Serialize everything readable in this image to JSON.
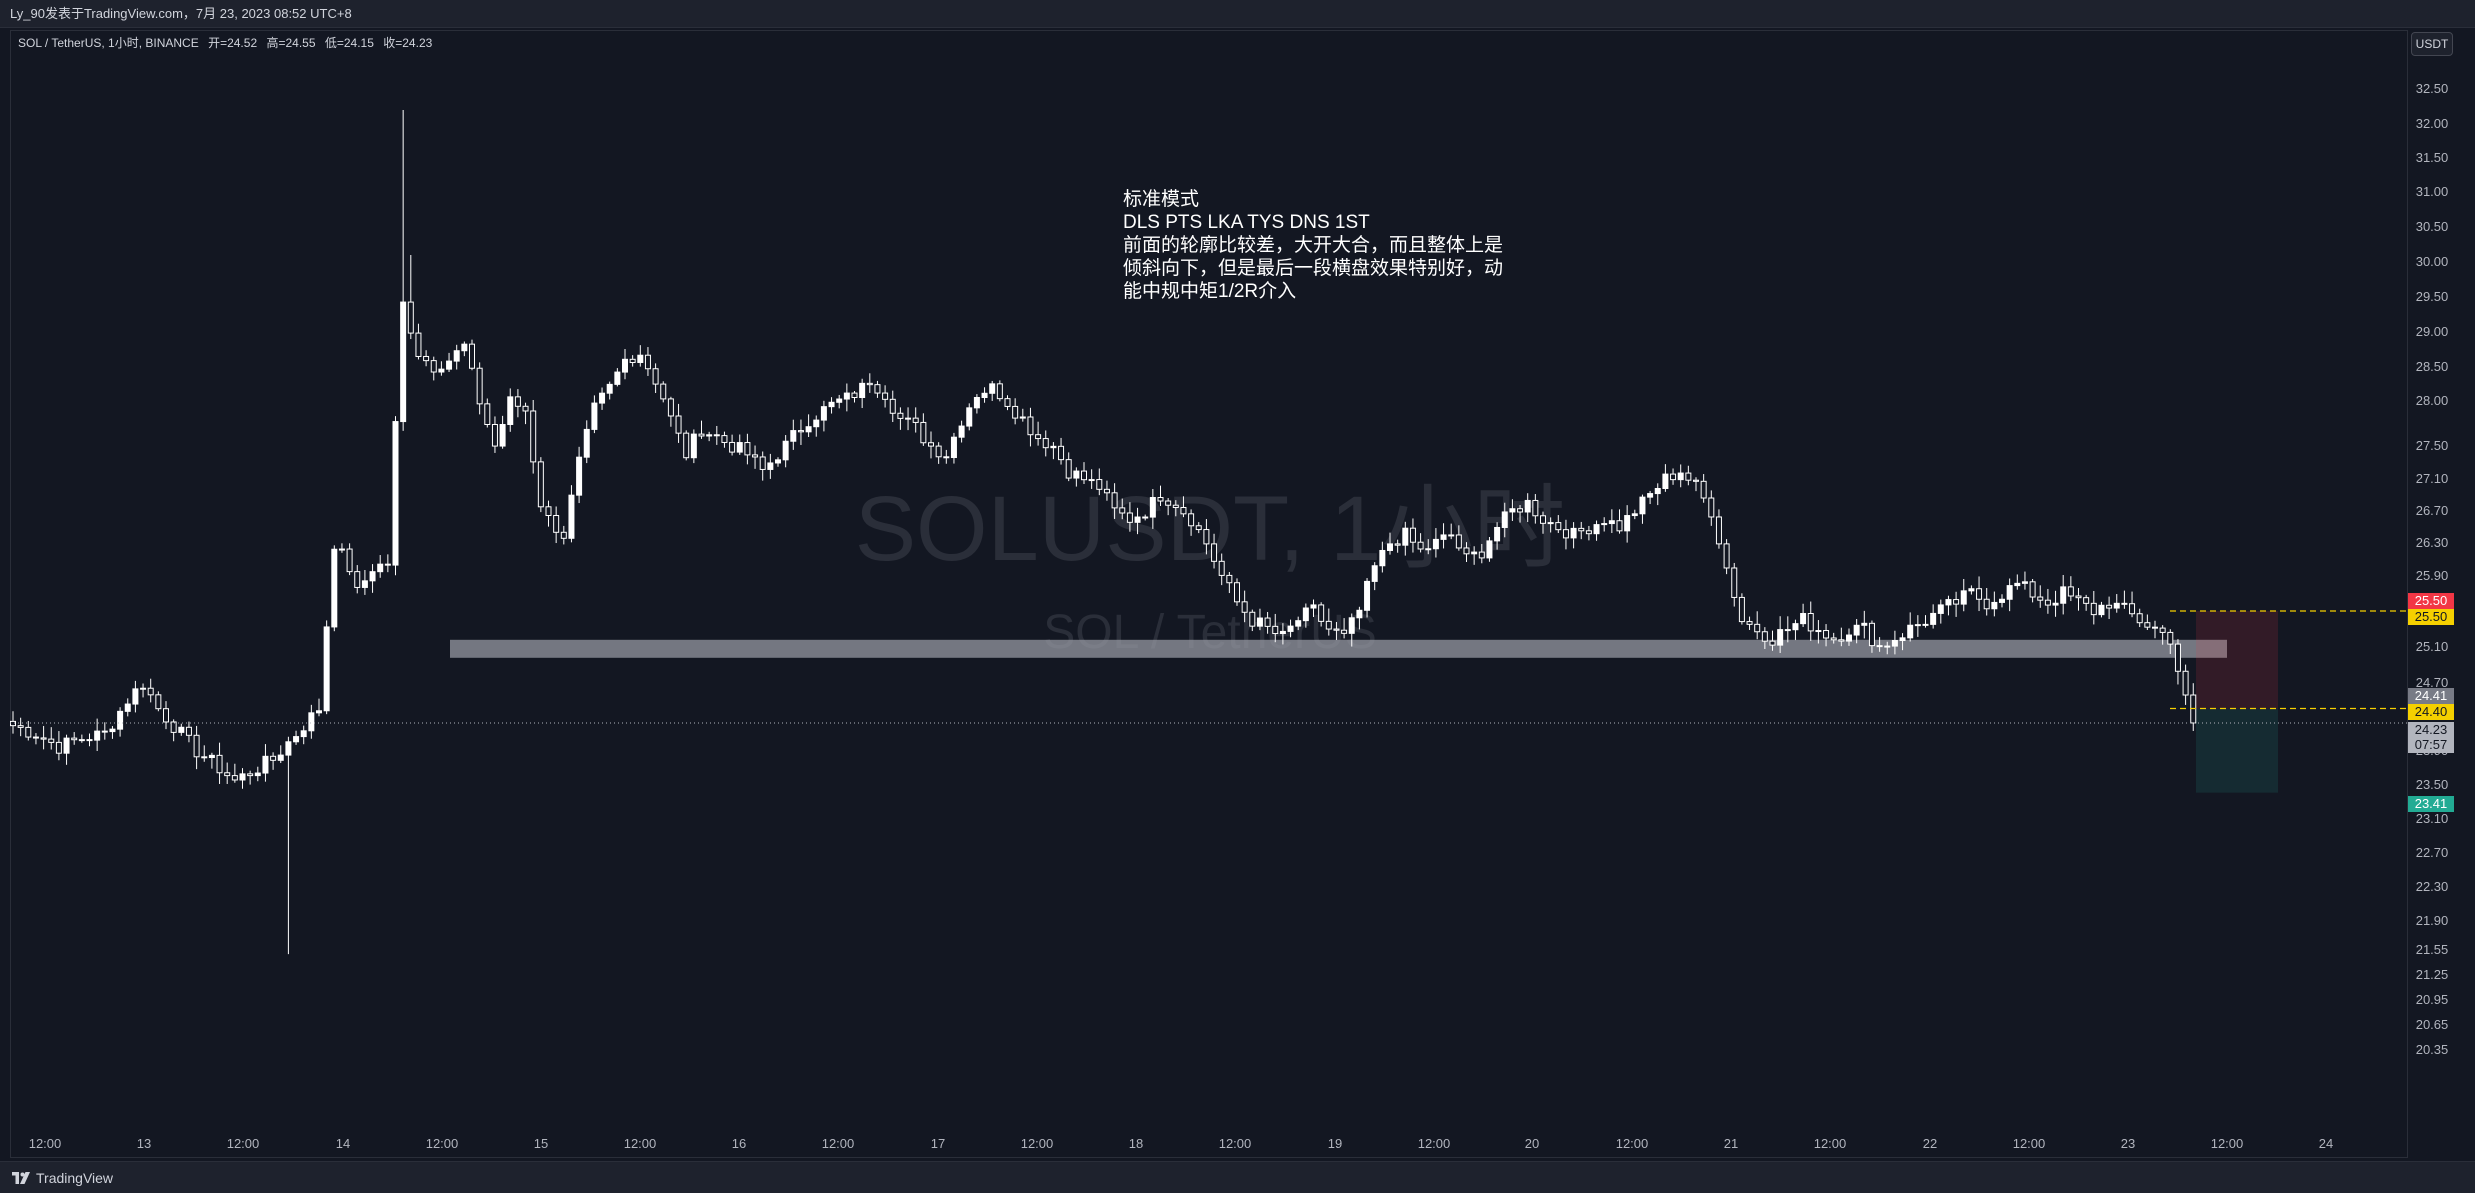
{
  "header": {
    "publish_text": "Ly_90发表于TradingView.com，7月 23, 2023 08:52 UTC+8"
  },
  "legend": {
    "symbol": "SOL / TetherUS, 1小时, BINANCE",
    "open": "开=24.52",
    "high": "高=24.55",
    "low": "低=24.15",
    "close": "收=24.23"
  },
  "currency_button": "USDT",
  "watermark": {
    "main": "SOLUSDT, 1小时",
    "sub": "SOL / TetherUS"
  },
  "annotation": {
    "lines": [
      "标准模式",
      "DLS PTS LKA TYS DNS 1ST",
      "前面的轮廓比较差，大开大合，而且整体上是",
      "倾斜向下，但是最后一段横盘效果特别好，动",
      "能中规中矩1/2R介入"
    ]
  },
  "footer": {
    "brand": "TradingView"
  },
  "colors": {
    "background": "#131722",
    "candle": "#ffffff",
    "stop_zone": "#f23645",
    "target_zone": "#22ab94",
    "entry_line": "#f5d000",
    "support_zone": "#9598a1"
  },
  "chart_data": {
    "type": "candlestick",
    "symbol": "SOLUSDT",
    "interval": "1小时",
    "exchange": "BINANCE",
    "y_axis": {
      "position": "right",
      "ticks": [
        "32.50",
        "32.00",
        "31.50",
        "31.00",
        "30.50",
        "30.00",
        "29.50",
        "29.00",
        "28.50",
        "28.00",
        "27.50",
        "27.10",
        "26.70",
        "26.30",
        "25.90",
        "25.50",
        "25.10",
        "24.70",
        "23.90",
        "23.50",
        "23.10",
        "22.70",
        "22.30",
        "21.90",
        "21.55",
        "21.25",
        "20.95",
        "20.65",
        "20.35"
      ]
    },
    "x_axis": {
      "ticks": [
        "12:00",
        "13",
        "12:00",
        "14",
        "12:00",
        "15",
        "12:00",
        "16",
        "12:00",
        "17",
        "12:00",
        "18",
        "12:00",
        "19",
        "12:00",
        "20",
        "12:00",
        "21",
        "12:00",
        "22",
        "12:00",
        "23",
        "12:00",
        "24"
      ]
    },
    "price_tags": [
      {
        "label": "25.50",
        "color": "#f23645"
      },
      {
        "label": "25.50",
        "color": "#f5d000"
      },
      {
        "label": "24.41",
        "color": "#787b86"
      },
      {
        "label": "24.40",
        "color": "#f5d000"
      },
      {
        "label": "24.23",
        "color": "#b2b5be"
      },
      {
        "label": "07:57",
        "color": "#b2b5be"
      },
      {
        "label": "23.41",
        "color": "#22ab94"
      }
    ],
    "position": {
      "entry": 24.4,
      "stop": 25.5,
      "target": 23.41,
      "current": 24.23
    },
    "support_zone": {
      "low": 24.98,
      "high": 25.18
    },
    "candles_path": [
      [
        0,
        24.2
      ],
      [
        3,
        24.1
      ],
      [
        6,
        23.95
      ],
      [
        9,
        24.05
      ],
      [
        12,
        24.1
      ],
      [
        15,
        24.5
      ],
      [
        17,
        24.7
      ],
      [
        19,
        24.4
      ],
      [
        22,
        24.1
      ],
      [
        24,
        23.9
      ],
      [
        27,
        23.7
      ],
      [
        29,
        23.55
      ],
      [
        31,
        23.65
      ],
      [
        34,
        23.8
      ],
      [
        37,
        24.1
      ],
      [
        39,
        24.3
      ],
      [
        40,
        24.4
      ],
      [
        42,
        26.3
      ],
      [
        44,
        26.0
      ],
      [
        45,
        25.7
      ],
      [
        47,
        26.0
      ],
      [
        49,
        26.05
      ],
      [
        51,
        29.4
      ],
      [
        53,
        28.7
      ],
      [
        55,
        28.5
      ],
      [
        57,
        28.6
      ],
      [
        59,
        28.8
      ],
      [
        61,
        28.0
      ],
      [
        63,
        27.5
      ],
      [
        65,
        28.0
      ],
      [
        67,
        27.9
      ],
      [
        69,
        26.8
      ],
      [
        70,
        26.6
      ],
      [
        72,
        26.4
      ],
      [
        74,
        27.3
      ],
      [
        76,
        27.9
      ],
      [
        78,
        28.2
      ],
      [
        80,
        28.6
      ],
      [
        82,
        28.7
      ],
      [
        84,
        28.3
      ],
      [
        86,
        27.8
      ],
      [
        88,
        27.4
      ],
      [
        90,
        27.7
      ],
      [
        92,
        27.6
      ],
      [
        94,
        27.5
      ],
      [
        96,
        27.4
      ],
      [
        98,
        27.2
      ],
      [
        100,
        27.4
      ],
      [
        102,
        27.6
      ],
      [
        104,
        27.8
      ],
      [
        106,
        27.9
      ],
      [
        108,
        28.0
      ],
      [
        110,
        28.1
      ],
      [
        112,
        28.3
      ],
      [
        114,
        28.1
      ],
      [
        116,
        27.8
      ],
      [
        118,
        27.7
      ],
      [
        120,
        27.5
      ],
      [
        122,
        27.4
      ],
      [
        124,
        27.8
      ],
      [
        126,
        28.1
      ],
      [
        128,
        28.2
      ],
      [
        130,
        28.0
      ],
      [
        132,
        27.8
      ],
      [
        134,
        27.6
      ],
      [
        136,
        27.5
      ],
      [
        138,
        27.2
      ],
      [
        140,
        27.1
      ],
      [
        142,
        27.0
      ],
      [
        144,
        26.7
      ],
      [
        146,
        26.6
      ],
      [
        148,
        26.7
      ],
      [
        150,
        26.9
      ],
      [
        152,
        26.8
      ],
      [
        154,
        26.6
      ],
      [
        156,
        26.3
      ],
      [
        158,
        25.9
      ],
      [
        160,
        25.6
      ],
      [
        162,
        25.4
      ],
      [
        164,
        25.3
      ],
      [
        166,
        25.2
      ],
      [
        168,
        25.4
      ],
      [
        170,
        25.5
      ],
      [
        172,
        25.3
      ],
      [
        174,
        25.2
      ],
      [
        176,
        25.5
      ],
      [
        178,
        26.0
      ],
      [
        180,
        26.3
      ],
      [
        182,
        26.4
      ],
      [
        184,
        26.2
      ],
      [
        186,
        26.3
      ],
      [
        188,
        26.4
      ],
      [
        190,
        26.1
      ],
      [
        192,
        26.2
      ],
      [
        194,
        26.5
      ],
      [
        196,
        26.7
      ],
      [
        198,
        26.8
      ],
      [
        200,
        26.6
      ],
      [
        202,
        26.5
      ],
      [
        204,
        26.4
      ],
      [
        206,
        26.5
      ],
      [
        208,
        26.6
      ],
      [
        210,
        26.5
      ],
      [
        212,
        26.7
      ],
      [
        214,
        26.9
      ],
      [
        216,
        27.1
      ],
      [
        218,
        27.2
      ],
      [
        220,
        27.0
      ],
      [
        222,
        26.7
      ],
      [
        224,
        26.0
      ],
      [
        226,
        25.4
      ],
      [
        228,
        25.3
      ],
      [
        230,
        25.2
      ],
      [
        232,
        25.3
      ],
      [
        234,
        25.4
      ],
      [
        236,
        25.3
      ],
      [
        238,
        25.2
      ],
      [
        240,
        25.3
      ],
      [
        242,
        25.3
      ],
      [
        244,
        25.1
      ],
      [
        246,
        25.2
      ],
      [
        248,
        25.3
      ],
      [
        250,
        25.4
      ],
      [
        252,
        25.5
      ],
      [
        254,
        25.6
      ],
      [
        256,
        25.7
      ],
      [
        258,
        25.6
      ],
      [
        260,
        25.7
      ],
      [
        262,
        25.8
      ],
      [
        264,
        25.7
      ],
      [
        266,
        25.6
      ],
      [
        268,
        25.7
      ],
      [
        270,
        25.6
      ],
      [
        272,
        25.5
      ],
      [
        274,
        25.6
      ],
      [
        276,
        25.5
      ],
      [
        278,
        25.4
      ],
      [
        280,
        25.3
      ],
      [
        282,
        25.2
      ],
      [
        284,
        24.5
      ],
      [
        285,
        24.23
      ]
    ],
    "x_tick_count": 24
  }
}
